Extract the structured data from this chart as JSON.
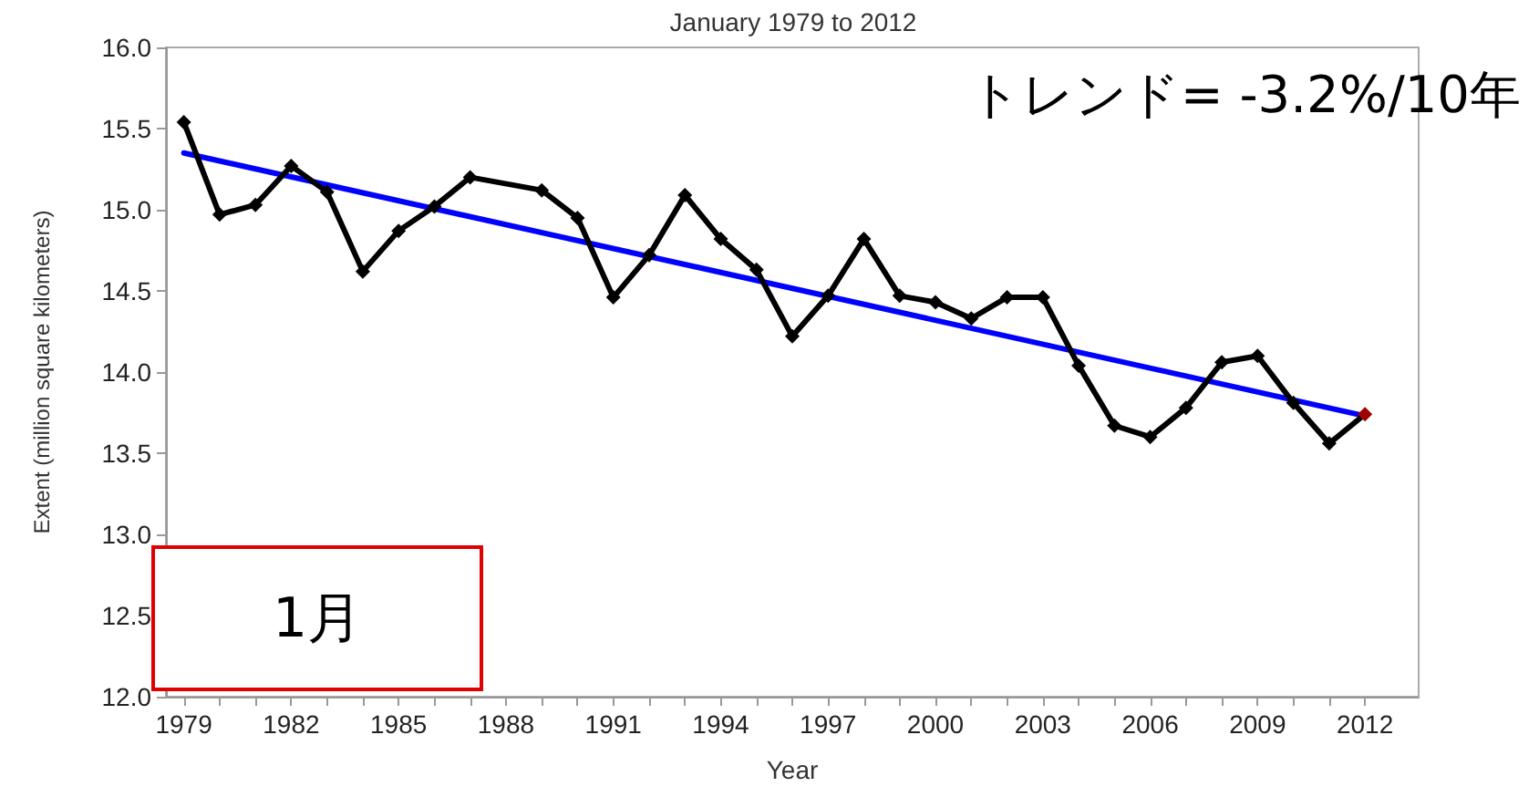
{
  "chart_data": {
    "type": "line",
    "title": "January 1979 to 2012",
    "xlabel": "Year",
    "ylabel": "Extent (million square kilometers)",
    "annotations": [
      "トレンド= -3.2%/10年",
      "1月"
    ],
    "x": [
      1979,
      1980,
      1981,
      1982,
      1983,
      1984,
      1985,
      1986,
      1987,
      1988,
      1989,
      1990,
      1991,
      1992,
      1993,
      1994,
      1995,
      1996,
      1997,
      1998,
      1999,
      2000,
      2001,
      2002,
      2003,
      2004,
      2005,
      2006,
      2007,
      2008,
      2009,
      2010,
      2011,
      2012
    ],
    "series": [
      {
        "color": "#000000",
        "marker": "diamond",
        "values": [
          15.54,
          14.97,
          15.03,
          15.27,
          15.11,
          14.62,
          14.87,
          15.02,
          15.2,
          null,
          15.12,
          14.95,
          14.46,
          14.72,
          15.09,
          14.82,
          14.63,
          14.22,
          14.47,
          14.82,
          14.47,
          14.43,
          14.33,
          14.46,
          14.46,
          14.04,
          13.67,
          13.6,
          13.78,
          14.06,
          14.1,
          13.81,
          13.56,
          13.74
        ],
        "colors": [
          "#000000",
          "#000000",
          "#000000",
          "#000000",
          "#000000",
          "#000000",
          "#000000",
          "#000000",
          "#000000",
          "#000000",
          "#000000",
          "#000000",
          "#000000",
          "#000000",
          "#000000",
          "#000000",
          "#000000",
          "#000000",
          "#000000",
          "#000000",
          "#000000",
          "#000000",
          "#000000",
          "#000000",
          "#000000",
          "#000000",
          "#000000",
          "#000000",
          "#000000",
          "#000000",
          "#000000",
          "#000000",
          "#000000",
          "#a00000"
        ]
      },
      {
        "type": "line",
        "color": "#0000ff",
        "marker": "none",
        "x": [
          1979,
          2012
        ],
        "values": [
          15.35,
          13.73
        ]
      }
    ],
    "xlim": [
      1978.5,
      2013.5
    ],
    "xticks": [
      1979,
      {
        "value": 1980,
        "label": null
      },
      {
        "value": 1981,
        "label": null
      },
      1982,
      {
        "value": 1983,
        "label": null
      },
      {
        "value": 1984,
        "label": null
      },
      1985,
      {
        "value": 1986,
        "label": null
      },
      {
        "value": 1987,
        "label": null
      },
      1988,
      {
        "value": 1989,
        "label": null
      },
      {
        "value": 1990,
        "label": null
      },
      1991,
      {
        "value": 1992,
        "label": null
      },
      {
        "value": 1993,
        "label": null
      },
      1994,
      {
        "value": 1995,
        "label": null
      },
      {
        "value": 1996,
        "label": null
      },
      1997,
      {
        "value": 1998,
        "label": null
      },
      {
        "value": 1999,
        "label": null
      },
      2000,
      {
        "value": 2001,
        "label": null
      },
      {
        "value": 2002,
        "label": null
      },
      2003,
      {
        "value": 2004,
        "label": null
      },
      {
        "value": 2005,
        "label": null
      },
      2006,
      {
        "value": 2007,
        "label": null
      },
      {
        "value": 2008,
        "label": null
      },
      2009,
      {
        "value": 2010,
        "label": null
      },
      {
        "value": 2011,
        "label": null
      },
      2012
    ],
    "ylim": [
      12,
      16
    ],
    "yticks": [
      {
        "value": 12,
        "label": "12.0"
      },
      12.5,
      {
        "value": 13,
        "label": "13.0"
      },
      13.5,
      {
        "value": 14,
        "label": "14.0"
      },
      14.5,
      {
        "value": 15,
        "label": "15.0"
      },
      15.5,
      {
        "value": 16,
        "label": "16.0"
      }
    ],
    "grid": false,
    "line_style": "solid"
  }
}
